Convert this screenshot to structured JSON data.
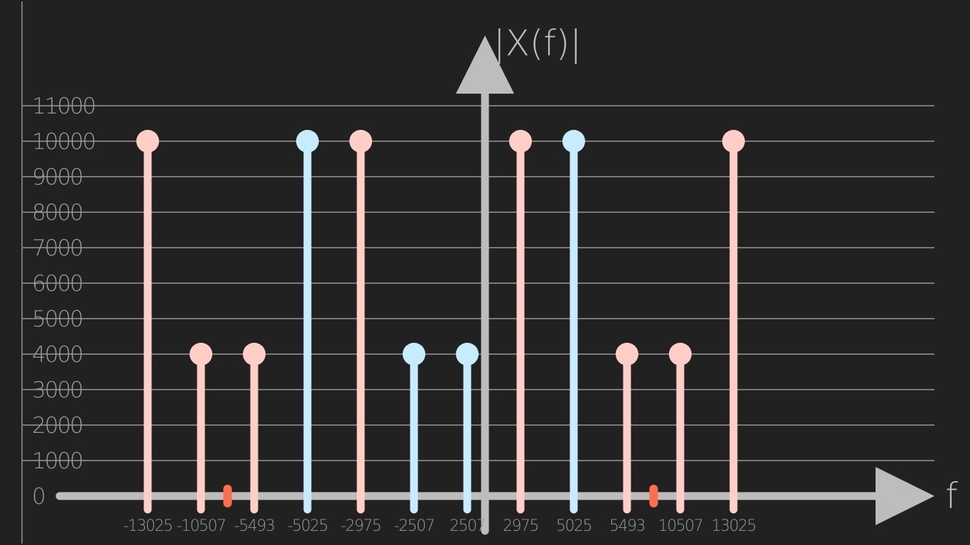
{
  "chart_data": {
    "type": "stem",
    "ylabel": "|X(f)|",
    "xlabel": "f",
    "ylim": [
      0,
      11000
    ],
    "yticks": [
      0,
      1000,
      2000,
      3000,
      4000,
      5000,
      6000,
      7000,
      8000,
      9000,
      10000,
      11000
    ],
    "ytick_labels": [
      "0",
      "1000",
      "2000",
      "3000",
      "4000",
      "5000",
      "6000",
      "7000",
      "8000",
      "9000",
      "10000",
      "11000"
    ],
    "grid": true,
    "x_tick_labels": [
      "-13025",
      "-10507",
      "-5493",
      "-5025",
      "-2975",
      "-2507",
      "2507",
      "2975",
      "5025",
      "5493",
      "10507",
      "13025"
    ],
    "colors": {
      "background": "#212121",
      "grid": "#7a7a7a",
      "axis": "#bdbdbd",
      "tick_text": "#9a9a9a",
      "series_pink": "#ffcfc7",
      "series_blue": "#c6ecfe",
      "marker": "#ff6e4f"
    },
    "stems": [
      {
        "x": -13025,
        "value": 10000,
        "color": "series_pink"
      },
      {
        "x": -10507,
        "value": 4000,
        "color": "series_pink"
      },
      {
        "x": -5493,
        "value": 4000,
        "color": "series_pink"
      },
      {
        "x": -5025,
        "value": 10000,
        "color": "series_blue"
      },
      {
        "x": -2975,
        "value": 10000,
        "color": "series_pink"
      },
      {
        "x": -2507,
        "value": 4000,
        "color": "series_blue"
      },
      {
        "x": 2507,
        "value": 4000,
        "color": "series_blue"
      },
      {
        "x": 2975,
        "value": 10000,
        "color": "series_pink"
      },
      {
        "x": 5025,
        "value": 10000,
        "color": "series_blue"
      },
      {
        "x": 5493,
        "value": 4000,
        "color": "series_pink"
      },
      {
        "x": 10507,
        "value": 4000,
        "color": "series_pink"
      },
      {
        "x": 13025,
        "value": 10000,
        "color": "series_pink"
      }
    ],
    "axis_markers": [
      -8000,
      8000
    ]
  }
}
